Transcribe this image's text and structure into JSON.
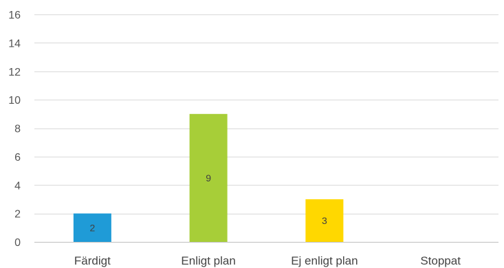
{
  "chart_data": {
    "type": "bar",
    "title": "",
    "xlabel": "",
    "ylabel": "",
    "categories": [
      "Färdigt",
      "Enligt plan",
      "Ej enligt plan",
      "Stoppat"
    ],
    "values": [
      2,
      9,
      3,
      0
    ],
    "data_labels": [
      "2",
      "9",
      "3",
      ""
    ],
    "bar_colors": [
      "#1f9bd7",
      "#a7ce38",
      "#ffd800",
      "#c00000"
    ],
    "ylim": [
      0,
      16
    ],
    "yticks": [
      0,
      2,
      4,
      6,
      8,
      10,
      12,
      14,
      16
    ],
    "grid": true,
    "legend": "none"
  }
}
